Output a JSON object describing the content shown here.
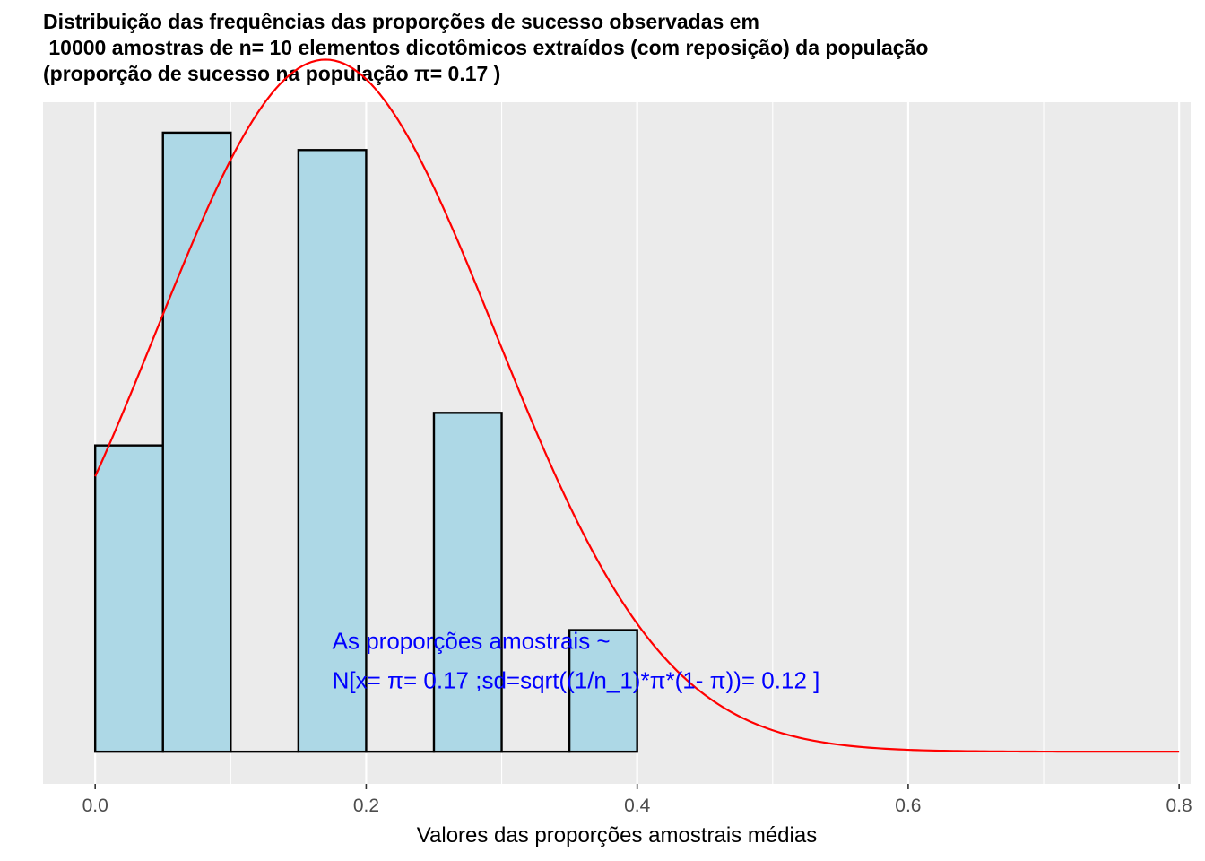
{
  "chart_data": {
    "type": "bar",
    "title_lines": [
      "Distribuição das frequências das proporções de sucesso observadas em",
      " 10000 amostras de n= 10 elementos dicotômicos extraídos (com reposição) da população",
      "(proporção de sucesso na população π= 0.17 )"
    ],
    "xlabel": "Valores das proporções amostrais médias",
    "ylabel": "",
    "xlim": [
      -0.0385,
      0.8085
    ],
    "ylim": [
      -0.148,
      2.99
    ],
    "xticks": [
      0.0,
      0.2,
      0.4,
      0.6,
      0.8
    ],
    "xtick_labels": [
      "0.0",
      "0.2",
      "0.4",
      "0.6",
      "0.8"
    ],
    "bin_width": 0.05,
    "bins": [
      {
        "xmin": 0.0,
        "xmax": 0.05,
        "density": 1.41
      },
      {
        "xmin": 0.05,
        "xmax": 0.1,
        "density": 2.85
      },
      {
        "xmin": 0.1,
        "xmax": 0.15,
        "density": 0.0
      },
      {
        "xmin": 0.15,
        "xmax": 0.2,
        "density": 2.77
      },
      {
        "xmin": 0.2,
        "xmax": 0.25,
        "density": 0.0
      },
      {
        "xmin": 0.25,
        "xmax": 0.3,
        "density": 1.56
      },
      {
        "xmin": 0.3,
        "xmax": 0.35,
        "density": 0.0
      },
      {
        "xmin": 0.35,
        "xmax": 0.4,
        "density": 0.56
      }
    ],
    "normal_curve": {
      "mean": 0.17,
      "sd": 0.1252,
      "xrange": [
        0.0,
        0.8
      ],
      "color": "#ff0000"
    },
    "annotation_lines": [
      "As proporções amostrais ~",
      "N[x= π= 0.17 ;sd=sqrt((1/n_1)*π*(1- π))= 0.12 ]"
    ],
    "annotation_position": {
      "x": 0.175,
      "y": 0.4
    },
    "colors": {
      "bar_fill": "#add8e6",
      "bar_stroke": "#000000",
      "panel_bg": "#ebebeb",
      "grid": "#ffffff",
      "annotation": "#0000ff"
    },
    "grid": true,
    "legend": "none"
  }
}
